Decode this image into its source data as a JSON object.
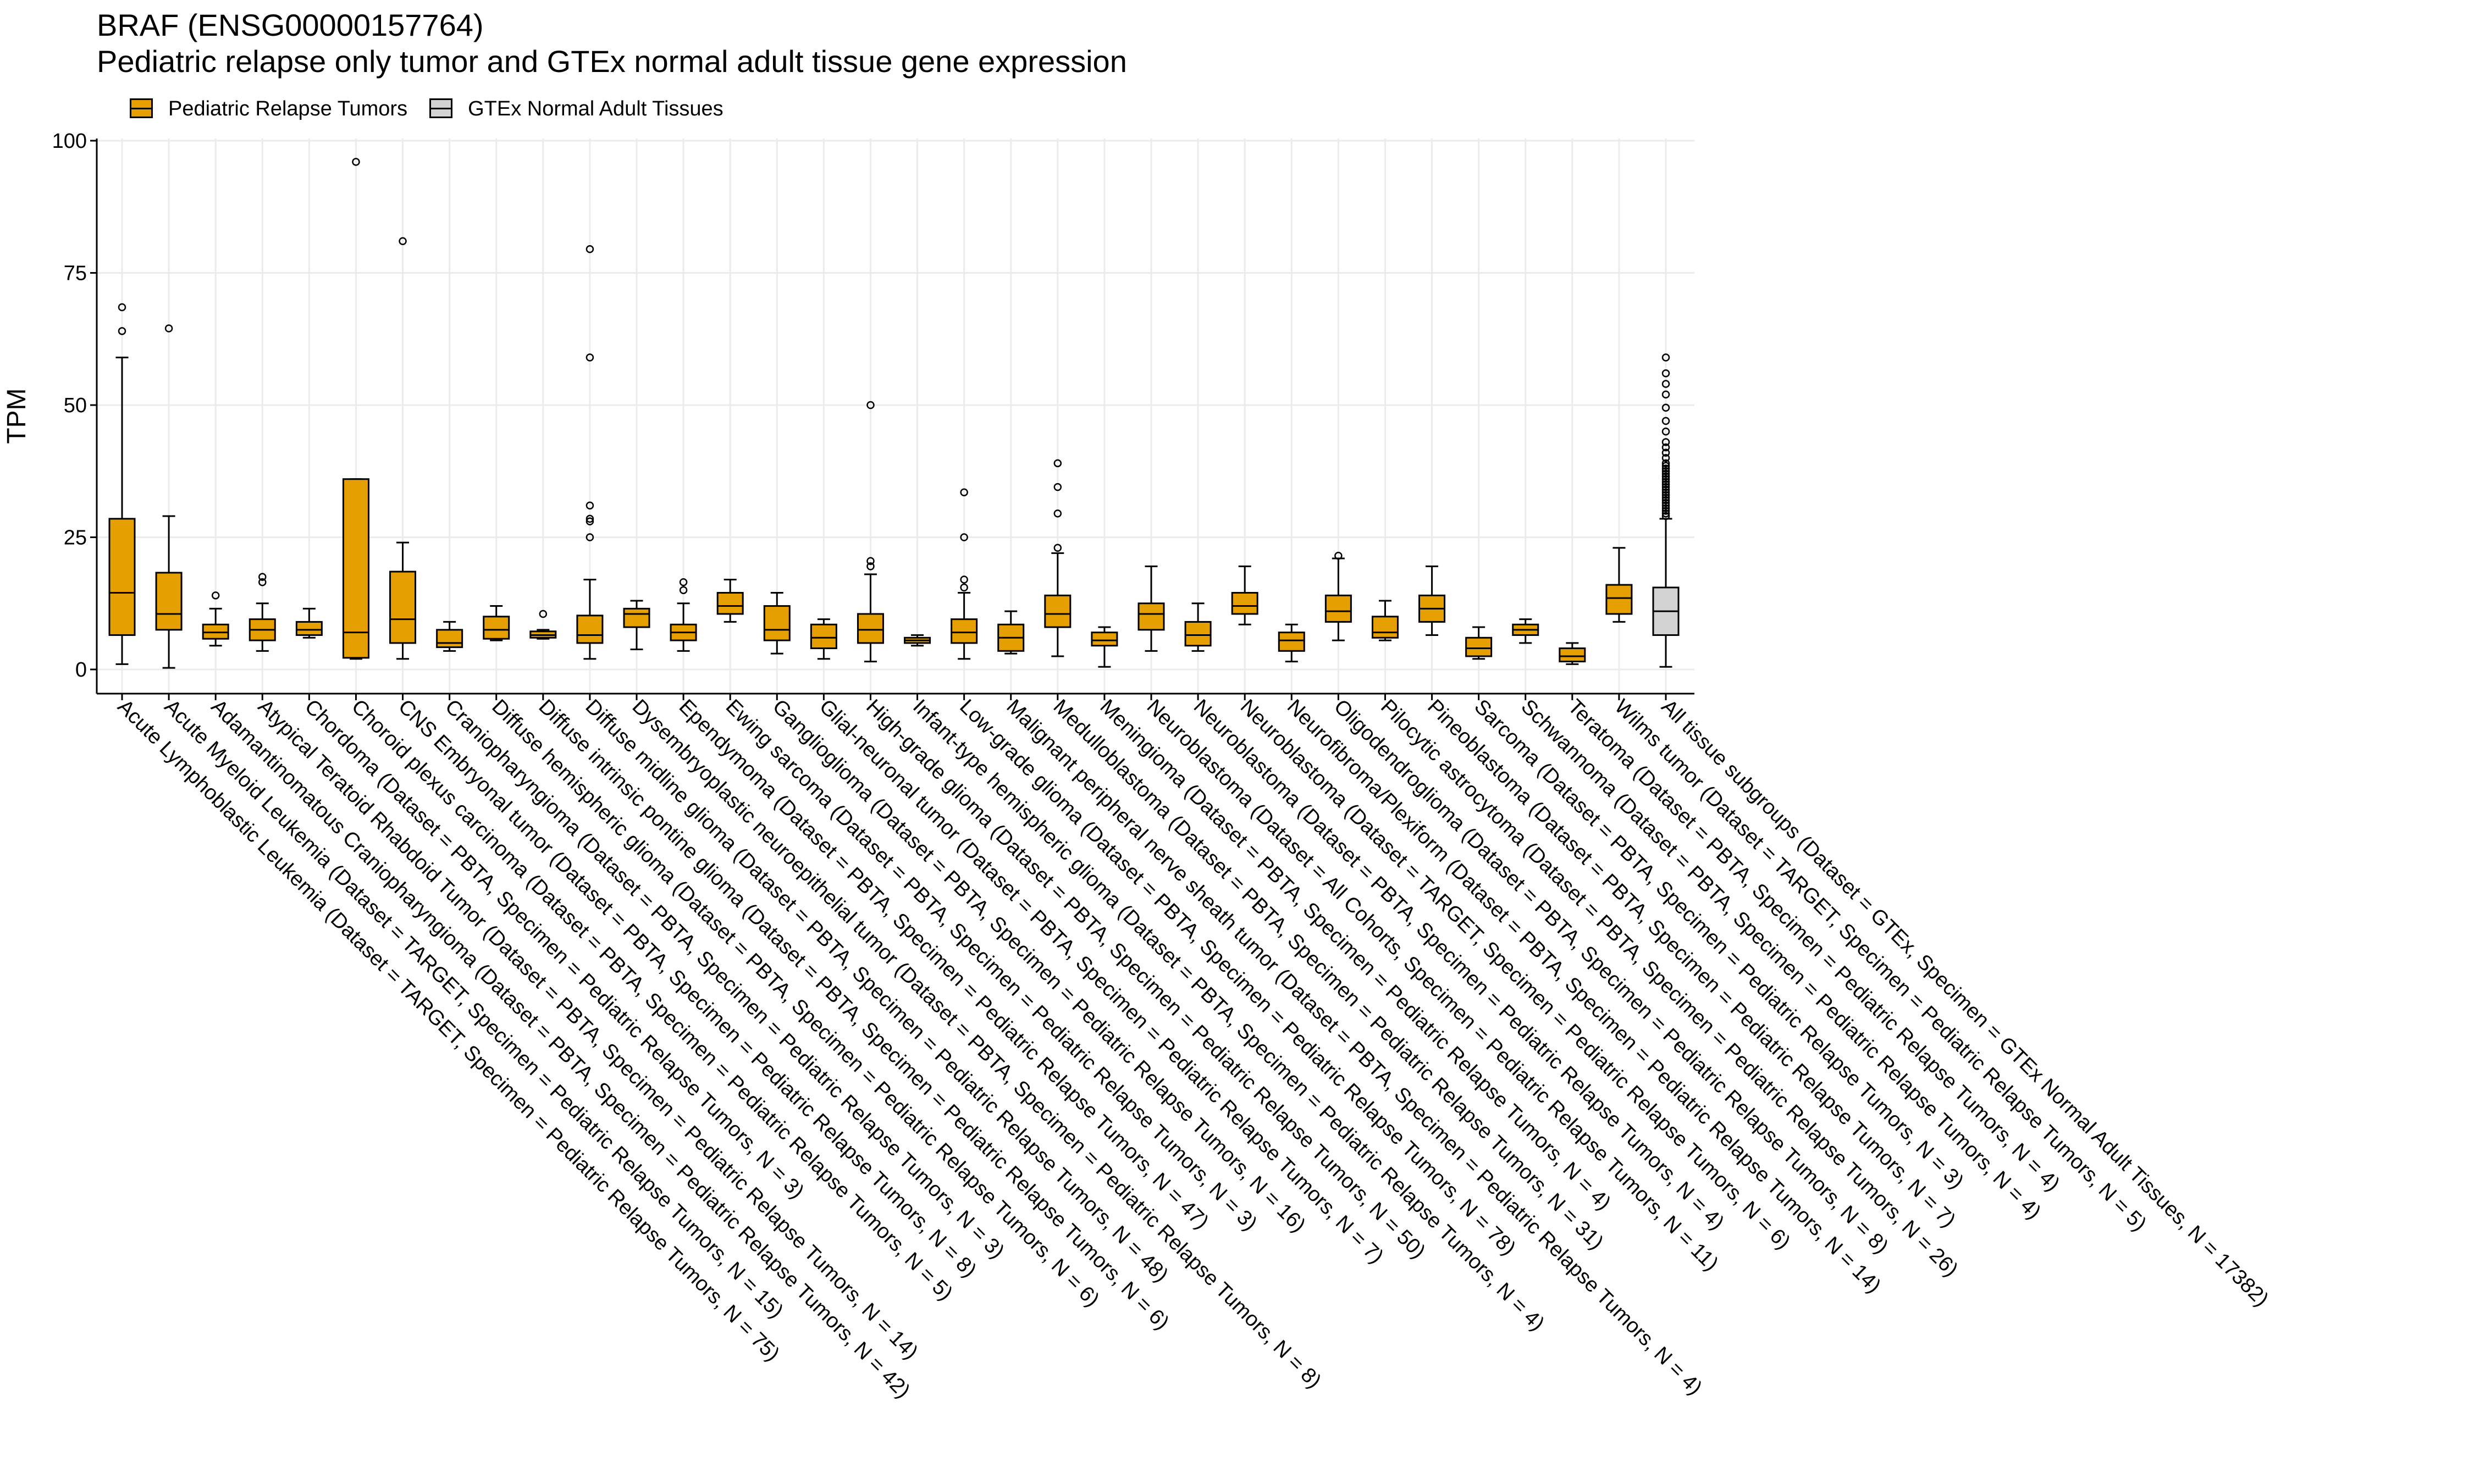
{
  "chart_data": {
    "type": "box",
    "title": "BRAF (ENSG00000157764)",
    "subtitle": "Pediatric relapse only tumor and GTEx normal adult tissue gene expression",
    "ylabel": "TPM",
    "xlabel": "",
    "ylim": [
      0,
      100
    ],
    "yticks": [
      0,
      25,
      50,
      75,
      100
    ],
    "grid": true,
    "legend": {
      "position": "top-left",
      "entries": [
        {
          "name": "Pediatric Relapse Tumors",
          "color": "#E69F00"
        },
        {
          "name": "GTEx Normal Adult Tissues",
          "color": "#D3D3D3"
        }
      ]
    },
    "series": [
      {
        "name": "Pediatric Relapse Tumors",
        "color": "#E69F00"
      },
      {
        "name": "GTEx Normal Adult Tissues",
        "color": "#D3D3D3"
      }
    ],
    "categories": [
      {
        "label": "Acute Lymphoblastic Leukemia  (Dataset = TARGET, Specimen = Pediatric Relapse Tumors, N = 75)",
        "group": 0,
        "min": 1,
        "q1": 6.5,
        "median": 14.5,
        "q3": 28.5,
        "max": 59,
        "outliers": [
          64,
          68.5
        ]
      },
      {
        "label": "Acute Myeloid Leukemia  (Dataset = TARGET, Specimen = Pediatric Relapse Tumors, N = 15)",
        "group": 0,
        "min": 0.3,
        "q1": 7.5,
        "median": 10.5,
        "q3": 18.3,
        "max": 29,
        "outliers": [
          64.5
        ]
      },
      {
        "label": "Adamantinomatous Craniopharyngioma  (Dataset = PBTA, Specimen = Pediatric Relapse Tumors, N = 42)",
        "group": 0,
        "min": 4.5,
        "q1": 5.8,
        "median": 7,
        "q3": 8.5,
        "max": 11.5,
        "outliers": [
          14
        ]
      },
      {
        "label": "Atypical Teratoid Rhabdoid Tumor  (Dataset = PBTA, Specimen = Pediatric Relapse Tumors, N = 14)",
        "group": 0,
        "min": 3.5,
        "q1": 5.5,
        "median": 7.5,
        "q3": 9.5,
        "max": 12.5,
        "outliers": [
          16.5,
          17.5
        ]
      },
      {
        "label": "Chordoma  (Dataset = PBTA, Specimen = Pediatric Relapse Tumors, N = 3)",
        "group": 0,
        "min": 6,
        "q1": 6.5,
        "median": 7.5,
        "q3": 9,
        "max": 11.5,
        "outliers": []
      },
      {
        "label": "Choroid plexus carcinoma  (Dataset = PBTA, Specimen = Pediatric Relapse Tumors, N = 5)",
        "group": 0,
        "min": 2,
        "q1": 2.2,
        "median": 7,
        "q3": 36,
        "max": 36,
        "outliers": [
          96
        ]
      },
      {
        "label": "CNS Embryonal tumor  (Dataset = PBTA, Specimen = Pediatric Relapse Tumors, N = 8)",
        "group": 0,
        "min": 2,
        "q1": 5,
        "median": 9.5,
        "q3": 18.5,
        "max": 24,
        "outliers": [
          81
        ]
      },
      {
        "label": "Craniopharyngioma  (Dataset = PBTA, Specimen = Pediatric Relapse Tumors, N = 3)",
        "group": 0,
        "min": 3.5,
        "q1": 4.2,
        "median": 5,
        "q3": 7.5,
        "max": 9,
        "outliers": []
      },
      {
        "label": "Diffuse hemispheric glioma  (Dataset = PBTA, Specimen = Pediatric Relapse Tumors, N = 6)",
        "group": 0,
        "min": 5.5,
        "q1": 5.8,
        "median": 7.5,
        "q3": 10,
        "max": 12,
        "outliers": []
      },
      {
        "label": "Diffuse intrinsic pontine glioma  (Dataset = PBTA, Specimen = Pediatric Relapse Tumors, N = 6)",
        "group": 0,
        "min": 5.8,
        "q1": 6,
        "median": 6.5,
        "q3": 7.2,
        "max": 7.5,
        "outliers": [
          10.5
        ]
      },
      {
        "label": "Diffuse midline glioma  (Dataset = PBTA, Specimen = Pediatric Relapse Tumors, N = 48)",
        "group": 0,
        "min": 2,
        "q1": 5,
        "median": 6.5,
        "q3": 10.2,
        "max": 17,
        "outliers": [
          25,
          28,
          28.5,
          31,
          59,
          79.5
        ]
      },
      {
        "label": "Dysembryoplastic neuroepithelial tumor  (Dataset = PBTA, Specimen = Pediatric Relapse Tumors, N = 8)",
        "group": 0,
        "min": 3.8,
        "q1": 8,
        "median": 10.5,
        "q3": 11.5,
        "max": 13,
        "outliers": []
      },
      {
        "label": "Ependymoma  (Dataset = PBTA, Specimen = Pediatric Relapse Tumors, N = 47)",
        "group": 0,
        "min": 3.5,
        "q1": 5.5,
        "median": 7,
        "q3": 8.5,
        "max": 12.5,
        "outliers": [
          15,
          16.5
        ]
      },
      {
        "label": "Ewing sarcoma  (Dataset = PBTA, Specimen = Pediatric Relapse Tumors, N = 3)",
        "group": 0,
        "min": 9,
        "q1": 10.5,
        "median": 12,
        "q3": 14.5,
        "max": 17,
        "outliers": []
      },
      {
        "label": "Ganglioglioma  (Dataset = PBTA, Specimen = Pediatric Relapse Tumors, N = 16)",
        "group": 0,
        "min": 3,
        "q1": 5.5,
        "median": 7.5,
        "q3": 12,
        "max": 14.5,
        "outliers": []
      },
      {
        "label": "Glial-neuronal tumor  (Dataset = PBTA, Specimen = Pediatric Relapse Tumors, N = 7)",
        "group": 0,
        "min": 2,
        "q1": 4,
        "median": 6,
        "q3": 8.5,
        "max": 9.5,
        "outliers": []
      },
      {
        "label": "High-grade glioma  (Dataset = PBTA, Specimen = Pediatric Relapse Tumors, N = 50)",
        "group": 0,
        "min": 1.5,
        "q1": 5,
        "median": 7.5,
        "q3": 10.5,
        "max": 18,
        "outliers": [
          19.5,
          20.5,
          50
        ]
      },
      {
        "label": "Infant-type hemispheric glioma  (Dataset = PBTA, Specimen = Pediatric Relapse Tumors, N = 4)",
        "group": 0,
        "min": 4.5,
        "q1": 5,
        "median": 5.5,
        "q3": 6,
        "max": 6.5,
        "outliers": []
      },
      {
        "label": "Low-grade glioma  (Dataset = PBTA, Specimen = Pediatric Relapse Tumors, N = 78)",
        "group": 0,
        "min": 2,
        "q1": 5,
        "median": 7,
        "q3": 9.5,
        "max": 14.5,
        "outliers": [
          15.5,
          17,
          25,
          33.5
        ]
      },
      {
        "label": "Malignant peripheral nerve sheath tumor  (Dataset = PBTA, Specimen = Pediatric Relapse Tumors, N = 4)",
        "group": 0,
        "min": 3,
        "q1": 3.5,
        "median": 6,
        "q3": 8.5,
        "max": 11,
        "outliers": []
      },
      {
        "label": "Medulloblastoma  (Dataset = PBTA, Specimen = Pediatric Relapse Tumors, N = 31)",
        "group": 0,
        "min": 2.5,
        "q1": 8,
        "median": 10.5,
        "q3": 14,
        "max": 22,
        "outliers": [
          23,
          29.5,
          34.5,
          39
        ]
      },
      {
        "label": "Meningioma  (Dataset = PBTA, Specimen = Pediatric Relapse Tumors, N = 4)",
        "group": 0,
        "min": 0.5,
        "q1": 4.5,
        "median": 5.5,
        "q3": 7,
        "max": 8,
        "outliers": []
      },
      {
        "label": "Neuroblastoma  (Dataset = All Cohorts, Specimen = Pediatric Relapse Tumors, N = 11)",
        "group": 0,
        "min": 3.5,
        "q1": 7.5,
        "median": 10.5,
        "q3": 12.5,
        "max": 19.5,
        "outliers": []
      },
      {
        "label": "Neuroblastoma  (Dataset = PBTA, Specimen = Pediatric Relapse Tumors, N = 4)",
        "group": 0,
        "min": 3.5,
        "q1": 4.5,
        "median": 6.5,
        "q3": 9,
        "max": 12.5,
        "outliers": []
      },
      {
        "label": "Neuroblastoma  (Dataset = TARGET, Specimen = Pediatric Relapse Tumors, N = 6)",
        "group": 0,
        "min": 8.5,
        "q1": 10.5,
        "median": 12,
        "q3": 14.5,
        "max": 19.5,
        "outliers": []
      },
      {
        "label": "Neurofibroma/Plexiform  (Dataset = PBTA, Specimen = Pediatric Relapse Tumors, N = 14)",
        "group": 0,
        "min": 1.5,
        "q1": 3.5,
        "median": 5.5,
        "q3": 7,
        "max": 8.5,
        "outliers": []
      },
      {
        "label": "Oligodendroglioma  (Dataset = PBTA, Specimen = Pediatric Relapse Tumors, N = 8)",
        "group": 0,
        "min": 5.5,
        "q1": 9,
        "median": 11,
        "q3": 14,
        "max": 21,
        "outliers": [
          21.5
        ]
      },
      {
        "label": "Pilocytic astrocytoma  (Dataset = PBTA, Specimen = Pediatric Relapse Tumors, N = 26)",
        "group": 0,
        "min": 5.5,
        "q1": 6,
        "median": 7,
        "q3": 10,
        "max": 13,
        "outliers": []
      },
      {
        "label": "Pineoblastoma  (Dataset = PBTA, Specimen = Pediatric Relapse Tumors, N = 7)",
        "group": 0,
        "min": 6.5,
        "q1": 9,
        "median": 11.5,
        "q3": 14,
        "max": 19.5,
        "outliers": []
      },
      {
        "label": "Sarcoma  (Dataset = PBTA, Specimen = Pediatric Relapse Tumors, N = 3)",
        "group": 0,
        "min": 2,
        "q1": 2.5,
        "median": 4,
        "q3": 6,
        "max": 8,
        "outliers": []
      },
      {
        "label": "Schwannoma  (Dataset = PBTA, Specimen = Pediatric Relapse Tumors, N = 4)",
        "group": 0,
        "min": 5,
        "q1": 6.5,
        "median": 7.5,
        "q3": 8.5,
        "max": 9.5,
        "outliers": []
      },
      {
        "label": "Teratoma  (Dataset = PBTA, Specimen = Pediatric Relapse Tumors, N = 4)",
        "group": 0,
        "min": 1,
        "q1": 1.5,
        "median": 2.5,
        "q3": 4,
        "max": 5,
        "outliers": []
      },
      {
        "label": "Wilms tumor  (Dataset = TARGET, Specimen = Pediatric Relapse Tumors, N = 5)",
        "group": 0,
        "min": 9,
        "q1": 10.5,
        "median": 13.5,
        "q3": 16,
        "max": 23,
        "outliers": []
      },
      {
        "label": "All tissue subgroups  (Dataset = GTEx, Specimen = GTEx Normal Adult Tissues, N = 17382)",
        "group": 1,
        "min": 0.5,
        "q1": 6.5,
        "median": 11,
        "q3": 15.5,
        "max": 28.5,
        "outliers": [
          29,
          29.5,
          30,
          30.5,
          31,
          31.5,
          32,
          32.5,
          33,
          33.5,
          34,
          34.5,
          35,
          35.5,
          36,
          36.5,
          37,
          37.5,
          38,
          38.5,
          39,
          40,
          41,
          42,
          43,
          45,
          47,
          49.5,
          52,
          54,
          56,
          59
        ]
      }
    ]
  }
}
